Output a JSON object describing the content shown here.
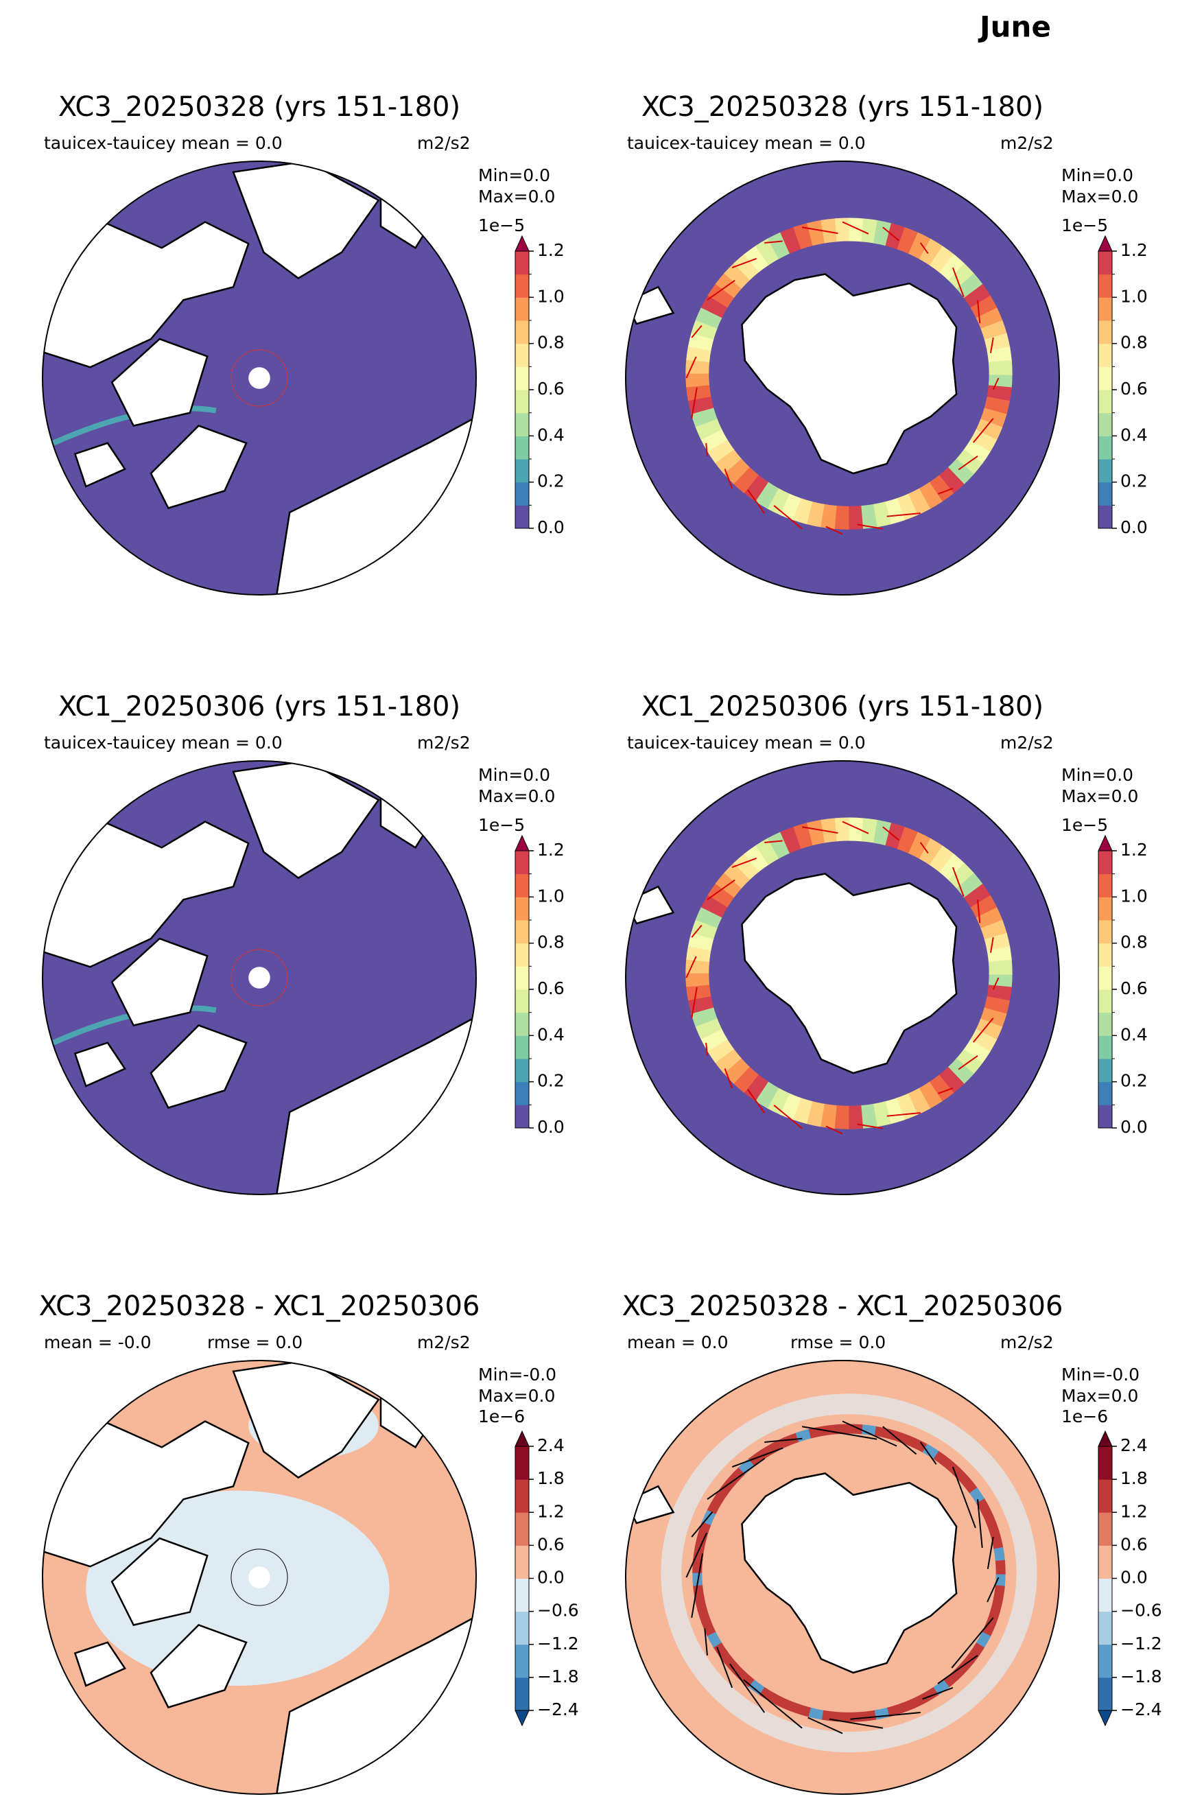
{
  "title": "June",
  "panels": [
    {
      "title": "XC3_20250328 (yrs 151-180)",
      "stats": [
        "tauicex-tauicey  mean = 0.0"
      ],
      "units": "m2/s2",
      "minmax": [
        "Min=0.0",
        " Max=0.0"
      ],
      "hemisphere": "north",
      "kind": "field",
      "colorbar": {
        "offset": "1e−5",
        "ticks": [
          "0.0",
          "0.2",
          "0.4",
          "0.6",
          "0.8",
          "1.0",
          "1.2"
        ],
        "extend": "max",
        "colors": [
          "#5e4fa2",
          "#3d7fb8",
          "#4ca5b1",
          "#7ecba4",
          "#b0dfa2",
          "#dcf09d",
          "#f7fbb1",
          "#fee89a",
          "#fdc877",
          "#fa9b58",
          "#ef6645",
          "#d6404e"
        ],
        "over": "#9e0142"
      }
    },
    {
      "title": "XC3_20250328 (yrs 151-180)",
      "stats": [
        "tauicex-tauicey  mean = 0.0"
      ],
      "units": "m2/s2",
      "minmax": [
        "Min=0.0",
        " Max=0.0"
      ],
      "hemisphere": "south",
      "kind": "field",
      "colorbar": {
        "offset": "1e−5",
        "ticks": [
          "0.0",
          "0.2",
          "0.4",
          "0.6",
          "0.8",
          "1.0",
          "1.2"
        ],
        "extend": "max",
        "colors": [
          "#5e4fa2",
          "#3d7fb8",
          "#4ca5b1",
          "#7ecba4",
          "#b0dfa2",
          "#dcf09d",
          "#f7fbb1",
          "#fee89a",
          "#fdc877",
          "#fa9b58",
          "#ef6645",
          "#d6404e"
        ],
        "over": "#9e0142"
      }
    },
    {
      "title": "XC1_20250306 (yrs 151-180)",
      "stats": [
        "tauicex-tauicey  mean = 0.0"
      ],
      "units": "m2/s2",
      "minmax": [
        "Min=0.0",
        " Max=0.0"
      ],
      "hemisphere": "north",
      "kind": "field",
      "colorbar": {
        "offset": "1e−5",
        "ticks": [
          "0.0",
          "0.2",
          "0.4",
          "0.6",
          "0.8",
          "1.0",
          "1.2"
        ],
        "extend": "max",
        "colors": [
          "#5e4fa2",
          "#3d7fb8",
          "#4ca5b1",
          "#7ecba4",
          "#b0dfa2",
          "#dcf09d",
          "#f7fbb1",
          "#fee89a",
          "#fdc877",
          "#fa9b58",
          "#ef6645",
          "#d6404e"
        ],
        "over": "#9e0142"
      }
    },
    {
      "title": "XC1_20250306 (yrs 151-180)",
      "stats": [
        "tauicex-tauicey  mean = 0.0"
      ],
      "units": "m2/s2",
      "minmax": [
        "Min=0.0",
        " Max=0.0"
      ],
      "hemisphere": "south",
      "kind": "field",
      "colorbar": {
        "offset": "1e−5",
        "ticks": [
          "0.0",
          "0.2",
          "0.4",
          "0.6",
          "0.8",
          "1.0",
          "1.2"
        ],
        "extend": "max",
        "colors": [
          "#5e4fa2",
          "#3d7fb8",
          "#4ca5b1",
          "#7ecba4",
          "#b0dfa2",
          "#dcf09d",
          "#f7fbb1",
          "#fee89a",
          "#fdc877",
          "#fa9b58",
          "#ef6645",
          "#d6404e"
        ],
        "over": "#9e0142"
      }
    },
    {
      "title": "XC3_20250328 - XC1_20250306",
      "stats": [
        "mean = -0.0",
        "rmse = 0.0"
      ],
      "units": "m2/s2",
      "minmax": [
        "Min=-0.0",
        "Max=0.0"
      ],
      "hemisphere": "north",
      "kind": "diff",
      "colorbar": {
        "offset": "1e−6",
        "ticks": [
          "−2.4",
          "−1.8",
          "−1.2",
          "−0.6",
          "0.0",
          "0.6",
          "1.2",
          "1.8",
          "2.4"
        ],
        "extend": "both",
        "colors": [
          "#2e6fad",
          "#5a9cca",
          "#a6cde3",
          "#deebf2",
          "#f7b799",
          "#e27a62",
          "#c03a37",
          "#8c0d25"
        ],
        "under": "#0b4a8a",
        "over": "#67001f"
      }
    },
    {
      "title": "XC3_20250328 - XC1_20250306",
      "stats": [
        "mean = 0.0",
        "rmse = 0.0"
      ],
      "units": "m2/s2",
      "minmax": [
        "Min=-0.0",
        "Max=0.0"
      ],
      "hemisphere": "south",
      "kind": "diff",
      "colorbar": {
        "offset": "1e−6",
        "ticks": [
          "−2.4",
          "−1.8",
          "−1.2",
          "−0.6",
          "0.0",
          "0.6",
          "1.2",
          "1.8",
          "2.4"
        ],
        "extend": "both",
        "colors": [
          "#2e6fad",
          "#5a9cca",
          "#a6cde3",
          "#deebf2",
          "#f7b799",
          "#e27a62",
          "#c03a37",
          "#8c0d25"
        ],
        "under": "#0b4a8a",
        "over": "#67001f"
      }
    }
  ]
}
